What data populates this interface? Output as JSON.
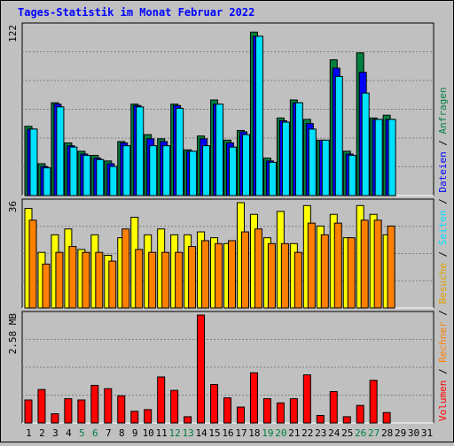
{
  "chart_data": {
    "type": "bar",
    "title": "Tages-Statistik im Monat Februar 2022",
    "categories": [
      "1",
      "2",
      "3",
      "4",
      "5",
      "6",
      "7",
      "8",
      "9",
      "10",
      "11",
      "12",
      "13",
      "14",
      "15",
      "16",
      "17",
      "18",
      "19",
      "20",
      "21",
      "22",
      "23",
      "24",
      "25",
      "26",
      "27",
      "28",
      "29",
      "30",
      "31"
    ],
    "weekend_days": [
      "5",
      "6",
      "12",
      "13",
      "19",
      "20",
      "26",
      "27"
    ],
    "panels": [
      {
        "name": "requests-files-pages",
        "ymax_label": "122",
        "ymax": 122,
        "series": [
          {
            "name": "Anfragen",
            "color": "#008040",
            "values": [
              50,
              23,
              67,
              38,
              32,
              29,
              25,
              39,
              66,
              44,
              41,
              66,
              33,
              43,
              69,
              40,
              47,
              118,
              27,
              56,
              69,
              55,
              40,
              98,
              32,
              103,
              56,
              58,
              null,
              null,
              null
            ]
          },
          {
            "name": "Dateien",
            "color": "#0000ff",
            "values": [
              48,
              21,
              66,
              36,
              30,
              27,
              23,
              38,
              65,
              41,
              39,
              65,
              32,
              41,
              66,
              38,
              46,
              115,
              25,
              54,
              67,
              52,
              40,
              92,
              30,
              89,
              55,
              55,
              null,
              null,
              null
            ]
          },
          {
            "name": "Seiten",
            "color": "#00e0ff",
            "values": [
              48,
              20,
              64,
              35,
              29,
              26,
              21,
              36,
              64,
              36,
              36,
              63,
              32,
              36,
              66,
              35,
              44,
              115,
              24,
              53,
              67,
              48,
              40,
              86,
              29,
              74,
              55,
              55,
              null,
              null,
              null
            ]
          }
        ]
      },
      {
        "name": "visits-sites",
        "ymax_label": "36",
        "ymax": 36,
        "series": [
          {
            "name": "Besuche",
            "color": "#ffff00",
            "values": [
              34,
              19,
              25,
              27,
              20,
              25,
              18,
              24,
              31,
              25,
              27,
              25,
              25,
              26,
              24,
              22,
              36,
              32,
              24,
              33,
              22,
              35,
              28,
              32,
              24,
              35,
              32,
              25,
              null,
              null,
              null
            ]
          },
          {
            "name": "Rechner",
            "color": "#ff8000",
            "values": [
              30,
              15,
              19,
              21,
              19,
              19,
              16,
              27,
              20,
              19,
              19,
              19,
              21,
              23,
              22,
              23,
              26,
              27,
              22,
              22,
              19,
              29,
              25,
              29,
              24,
              30,
              30,
              28,
              null,
              null,
              null
            ]
          }
        ]
      },
      {
        "name": "volume",
        "ymax_label": "2.58 MB",
        "ymax": 2.58,
        "series": [
          {
            "name": "Volumen",
            "color": "#ff0000",
            "values": [
              0.55,
              0.8,
              0.22,
              0.58,
              0.55,
              0.9,
              0.82,
              0.65,
              0.28,
              0.32,
              1.1,
              0.78,
              0.15,
              2.58,
              0.92,
              0.6,
              0.38,
              1.2,
              0.58,
              0.48,
              0.58,
              1.15,
              0.18,
              0.75,
              0.15,
              0.42,
              1.02,
              0.25,
              null,
              null,
              null
            ]
          }
        ]
      }
    ],
    "legend": [
      {
        "label": "Volumen",
        "color": "#ff0000"
      },
      {
        "label": "Rechner",
        "color": "#ff8000"
      },
      {
        "label": "Besuche",
        "color": "#ffff00"
      },
      {
        "label": "Seiten",
        "color": "#00e0ff"
      },
      {
        "label": "Dateien",
        "color": "#0000ff"
      },
      {
        "label": "Anfragen",
        "color": "#008040"
      }
    ],
    "legend_separator": "/",
    "legend_placement": "right-vertical"
  }
}
